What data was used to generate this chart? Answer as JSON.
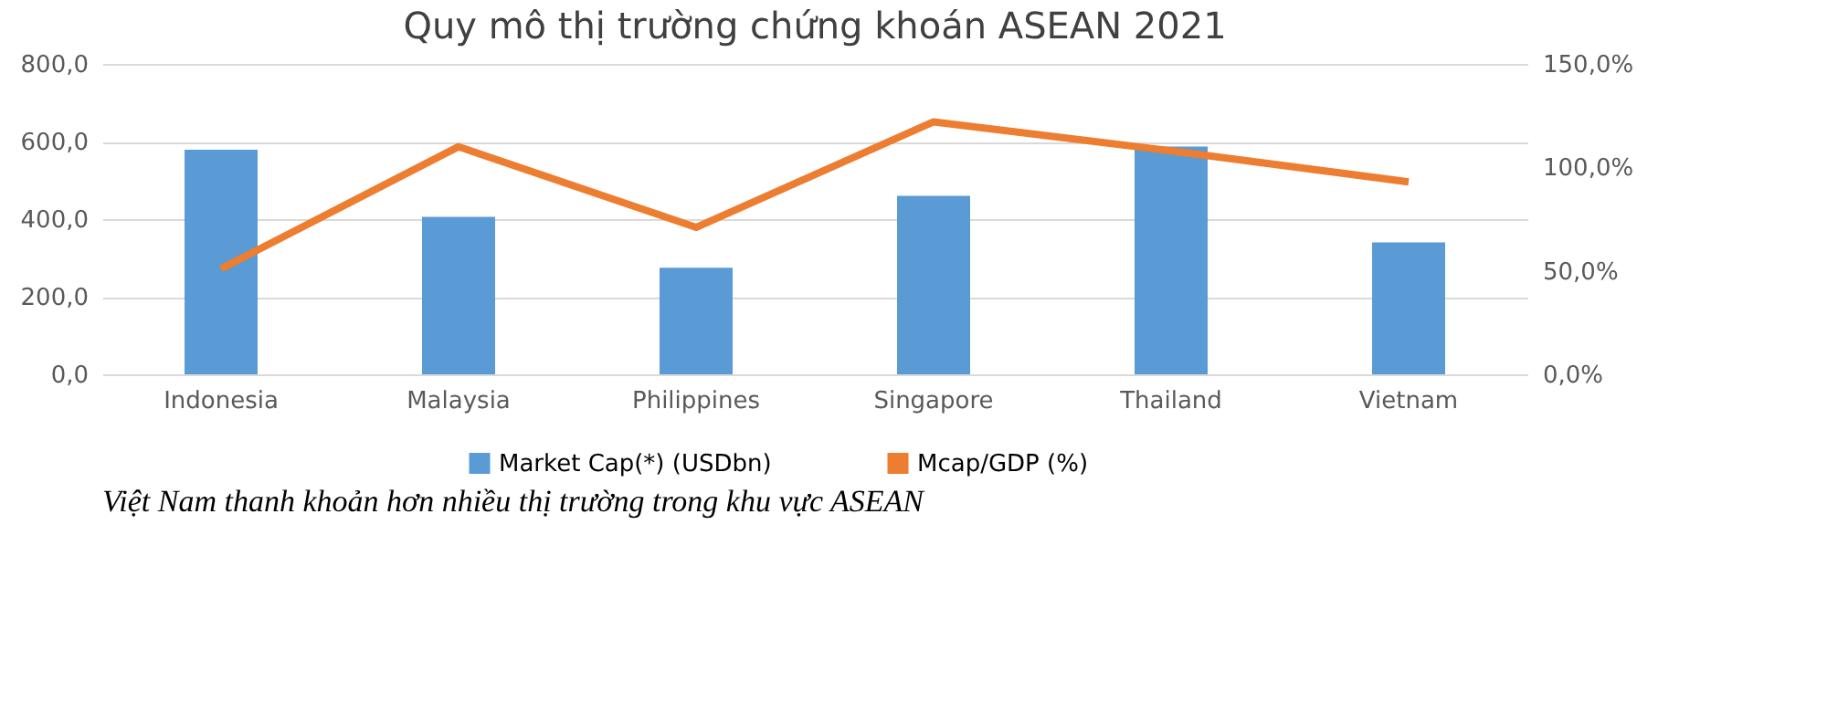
{
  "chart_data": {
    "type": "bar",
    "title": "Quy mô thị trường chứng khoán ASEAN 2021",
    "categories": [
      "Indonesia",
      "Malaysia",
      "Philippines",
      "Singapore",
      "Thailand",
      "Vietnam"
    ],
    "series": [
      {
        "name": "Market Cap(*) (USDbn)",
        "color": "#5b9bd5",
        "values": [
          579,
          406,
          275,
          460,
          587,
          340
        ]
      },
      {
        "name": "Mcap/GDP (%)",
        "color": "#ed7d31",
        "type": "line",
        "axis": "y2",
        "values": [
          51,
          110,
          71,
          122,
          108,
          93
        ]
      }
    ],
    "ylim": [
      0,
      800
    ],
    "yticks": [
      {
        "value": 0,
        "label": "0,0"
      },
      {
        "value": 200,
        "label": "200,0"
      },
      {
        "value": 400,
        "label": "400,0"
      },
      {
        "value": 600,
        "label": "600,0"
      },
      {
        "value": 800,
        "label": "800,0"
      }
    ],
    "y2lim": [
      0,
      150
    ],
    "y2ticks": [
      {
        "value": 0,
        "label": "0,0%"
      },
      {
        "value": 50,
        "label": "50,0%"
      },
      {
        "value": 100,
        "label": "100,0%"
      },
      {
        "value": 150,
        "label": "150,0%"
      }
    ],
    "grid": "y",
    "legend": "bottom",
    "marker": "none",
    "annotations": [
      "Việt Nam thanh khoản hơn nhiều thị trường trong khu vực ASEAN"
    ]
  }
}
